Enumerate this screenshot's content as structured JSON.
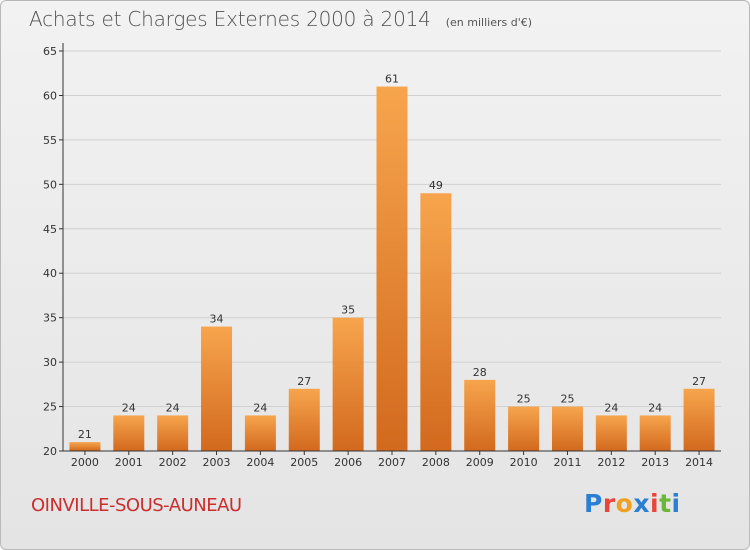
{
  "header": {
    "title": "Achats et Charges Externes 2000 à 2014",
    "subtitle": "(en milliers d'€)"
  },
  "footer": {
    "commune": "OINVILLE-SOUS-AUNEAU",
    "logo": "Proxiti",
    "logo_colors": [
      "#2a7fd4",
      "#e8463a",
      "#f0a020",
      "#2a7fd4",
      "#e8463a",
      "#6bb838",
      "#2a7fd4"
    ]
  },
  "colors": {
    "bar_top": "#f7a54d",
    "bar_bottom": "#d2691e",
    "axis": "#333333",
    "grid": "#d0d0d0"
  },
  "chart_data": {
    "type": "bar",
    "title": "Achats et Charges Externes 2000 à 2014",
    "subtitle": "(en milliers d'€)",
    "categories": [
      "2000",
      "2001",
      "2002",
      "2003",
      "2004",
      "2005",
      "2006",
      "2007",
      "2008",
      "2009",
      "2010",
      "2011",
      "2012",
      "2013",
      "2014"
    ],
    "values": [
      21,
      24,
      24,
      34,
      24,
      27,
      35,
      61,
      49,
      28,
      25,
      25,
      24,
      24,
      27
    ],
    "ylim": [
      20,
      65
    ],
    "yticks": [
      20,
      25,
      30,
      35,
      40,
      45,
      50,
      55,
      60,
      65
    ],
    "grid": true,
    "data_labels": true
  }
}
